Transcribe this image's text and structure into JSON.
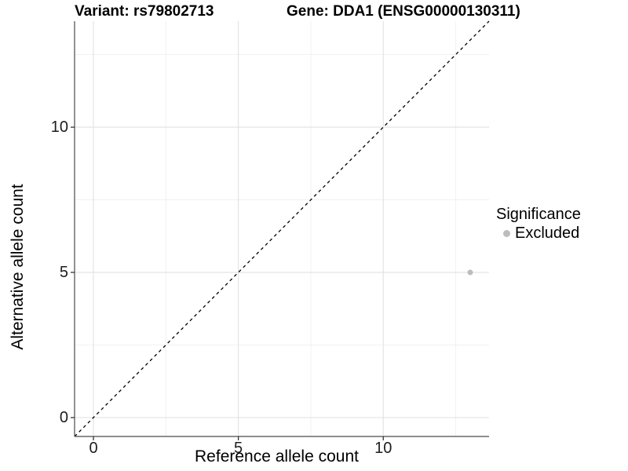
{
  "chart_data": {
    "type": "scatter",
    "titles": {
      "left": "Variant: rs79802713",
      "right": "Gene: DDA1 (ENSG00000130311)"
    },
    "xlabel": "Reference allele count",
    "ylabel": "Alternative allele count",
    "xlim": [
      -0.65,
      13.65
    ],
    "ylim": [
      -0.65,
      13.65
    ],
    "x_major_ticks": [
      0,
      5,
      10
    ],
    "y_major_ticks": [
      0,
      5,
      10
    ],
    "x_minor_ticks": [
      2.5,
      7.5,
      12.5
    ],
    "y_minor_ticks": [
      2.5,
      7.5,
      12.5
    ],
    "grid": "major and minor gridlines, white background",
    "reference_line": {
      "kind": "identity y=x",
      "style": "dashed",
      "color": "#000000"
    },
    "series": [
      {
        "name": "Excluded",
        "color": "#bdbdbd",
        "points": [
          {
            "x": 13,
            "y": 5
          }
        ]
      }
    ],
    "legend": {
      "title": "Significance",
      "position": "right",
      "entries": [
        {
          "label": "Excluded",
          "color": "#bdbdbd"
        }
      ]
    }
  },
  "colors": {
    "background": "#ffffff",
    "grid_major": "#e4e4e4",
    "grid_minor": "#f1f1f1",
    "axis_line": "#4a4a4a",
    "tick_mark": "#343434",
    "tick_label": "#1d1d1d",
    "title_text": "#000000",
    "point": "#bdbdbd",
    "dashed_line": "#000000"
  }
}
